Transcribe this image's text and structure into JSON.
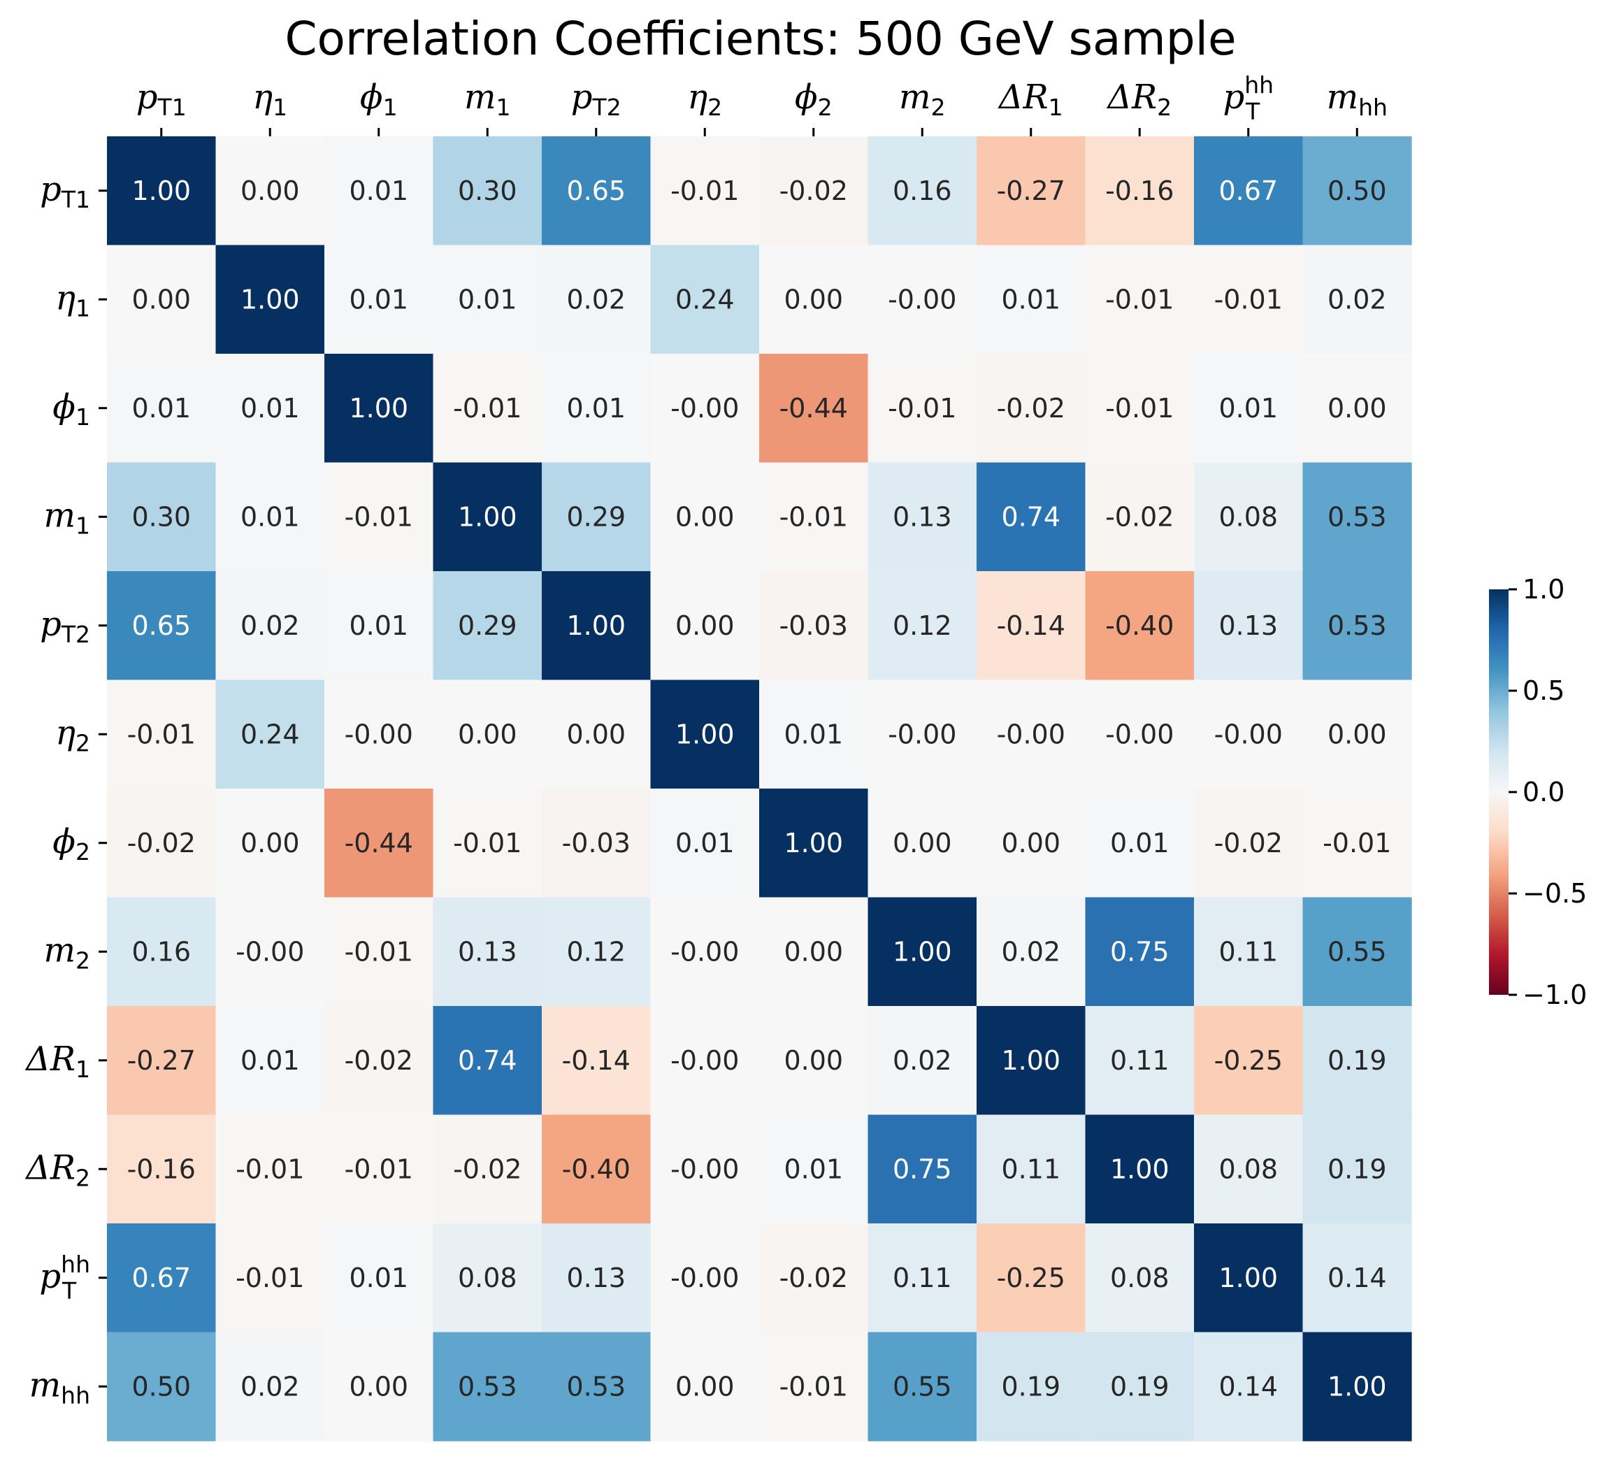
{
  "chart_data": {
    "type": "heatmap",
    "title": "Correlation Coefficients: 500 GeV sample",
    "labels": [
      {
        "base": "p",
        "sub": "T1",
        "sup": ""
      },
      {
        "base": "η",
        "sub": "1",
        "sup": ""
      },
      {
        "base": "ϕ",
        "sub": "1",
        "sup": ""
      },
      {
        "base": "m",
        "sub": "1",
        "sup": ""
      },
      {
        "base": "p",
        "sub": "T2",
        "sup": ""
      },
      {
        "base": "η",
        "sub": "2",
        "sup": ""
      },
      {
        "base": "ϕ",
        "sub": "2",
        "sup": ""
      },
      {
        "base": "m",
        "sub": "2",
        "sup": ""
      },
      {
        "base": "ΔR",
        "sub": "1",
        "sup": ""
      },
      {
        "base": "ΔR",
        "sub": "2",
        "sup": ""
      },
      {
        "base": "p",
        "sub": "T",
        "sup": "hh"
      },
      {
        "base": "m",
        "sub": "hh",
        "sup": ""
      }
    ],
    "matrix": [
      [
        1.0,
        0.0,
        0.01,
        0.3,
        0.65,
        -0.01,
        -0.02,
        0.16,
        -0.27,
        -0.16,
        0.67,
        0.5
      ],
      [
        0.0,
        1.0,
        0.01,
        0.01,
        0.02,
        0.24,
        0.0,
        -0.0,
        0.01,
        -0.01,
        -0.01,
        0.02
      ],
      [
        0.01,
        0.01,
        1.0,
        -0.01,
        0.01,
        -0.0,
        -0.44,
        -0.01,
        -0.02,
        -0.01,
        0.01,
        0.0
      ],
      [
        0.3,
        0.01,
        -0.01,
        1.0,
        0.29,
        0.0,
        -0.01,
        0.13,
        0.74,
        -0.02,
        0.08,
        0.53
      ],
      [
        0.65,
        0.02,
        0.01,
        0.29,
        1.0,
        0.0,
        -0.03,
        0.12,
        -0.14,
        -0.4,
        0.13,
        0.53
      ],
      [
        -0.01,
        0.24,
        -0.0,
        0.0,
        0.0,
        1.0,
        0.01,
        -0.0,
        -0.0,
        -0.0,
        -0.0,
        0.0
      ],
      [
        -0.02,
        0.0,
        -0.44,
        -0.01,
        -0.03,
        0.01,
        1.0,
        0.0,
        0.0,
        0.01,
        -0.02,
        -0.01
      ],
      [
        0.16,
        -0.0,
        -0.01,
        0.13,
        0.12,
        -0.0,
        0.0,
        1.0,
        0.02,
        0.75,
        0.11,
        0.55
      ],
      [
        -0.27,
        0.01,
        -0.02,
        0.74,
        -0.14,
        -0.0,
        0.0,
        0.02,
        1.0,
        0.11,
        -0.25,
        0.19
      ],
      [
        -0.16,
        -0.01,
        -0.01,
        -0.02,
        -0.4,
        -0.0,
        0.01,
        0.75,
        0.11,
        1.0,
        0.08,
        0.19
      ],
      [
        0.67,
        -0.01,
        0.01,
        0.08,
        0.13,
        -0.0,
        -0.02,
        0.11,
        -0.25,
        0.08,
        1.0,
        0.14
      ],
      [
        0.5,
        0.02,
        0.0,
        0.53,
        0.53,
        0.0,
        -0.01,
        0.55,
        0.19,
        0.19,
        0.14,
        1.0
      ]
    ],
    "value_labels": [
      [
        "1.00",
        "0.00",
        "0.01",
        "0.30",
        "0.65",
        "-0.01",
        "-0.02",
        "0.16",
        "-0.27",
        "-0.16",
        "0.67",
        "0.50"
      ],
      [
        "0.00",
        "1.00",
        "0.01",
        "0.01",
        "0.02",
        "0.24",
        "0.00",
        "-0.00",
        "0.01",
        "-0.01",
        "-0.01",
        "0.02"
      ],
      [
        "0.01",
        "0.01",
        "1.00",
        "-0.01",
        "0.01",
        "-0.00",
        "-0.44",
        "-0.01",
        "-0.02",
        "-0.01",
        "0.01",
        "0.00"
      ],
      [
        "0.30",
        "0.01",
        "-0.01",
        "1.00",
        "0.29",
        "0.00",
        "-0.01",
        "0.13",
        "0.74",
        "-0.02",
        "0.08",
        "0.53"
      ],
      [
        "0.65",
        "0.02",
        "0.01",
        "0.29",
        "1.00",
        "0.00",
        "-0.03",
        "0.12",
        "-0.14",
        "-0.40",
        "0.13",
        "0.53"
      ],
      [
        "-0.01",
        "0.24",
        "-0.00",
        "0.00",
        "0.00",
        "1.00",
        "0.01",
        "-0.00",
        "-0.00",
        "-0.00",
        "-0.00",
        "0.00"
      ],
      [
        "-0.02",
        "0.00",
        "-0.44",
        "-0.01",
        "-0.03",
        "0.01",
        "1.00",
        "0.00",
        "0.00",
        "0.01",
        "-0.02",
        "-0.01"
      ],
      [
        "0.16",
        "-0.00",
        "-0.01",
        "0.13",
        "0.12",
        "-0.00",
        "0.00",
        "1.00",
        "0.02",
        "0.75",
        "0.11",
        "0.55"
      ],
      [
        "-0.27",
        "0.01",
        "-0.02",
        "0.74",
        "-0.14",
        "-0.00",
        "0.00",
        "0.02",
        "1.00",
        "0.11",
        "-0.25",
        "0.19"
      ],
      [
        "-0.16",
        "-0.01",
        "-0.01",
        "-0.02",
        "-0.40",
        "-0.00",
        "0.01",
        "0.75",
        "0.11",
        "1.00",
        "0.08",
        "0.19"
      ],
      [
        "0.67",
        "-0.01",
        "0.01",
        "0.08",
        "0.13",
        "-0.00",
        "-0.02",
        "0.11",
        "-0.25",
        "0.08",
        "1.00",
        "0.14"
      ],
      [
        "0.50",
        "0.02",
        "0.00",
        "0.53",
        "0.53",
        "0.00",
        "-0.01",
        "0.55",
        "0.19",
        "0.19",
        "0.14",
        "1.00"
      ]
    ],
    "colormap": "RdBu",
    "vmin": -1.0,
    "vmax": 1.0,
    "colorbar": {
      "ticks": [
        1.0,
        0.5,
        0.0,
        -0.5,
        -1.0
      ],
      "tick_labels": [
        "1.0",
        "0.5",
        "0.0",
        "−0.5",
        "−1.0"
      ],
      "placement": "right"
    },
    "x_axis_position": "top",
    "grid": false
  }
}
